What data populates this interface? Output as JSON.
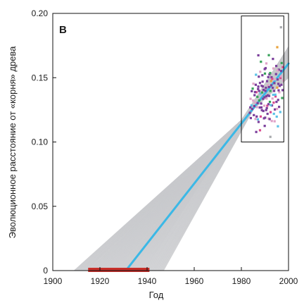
{
  "chart_data": {
    "type": "scatter",
    "panel_label": "B",
    "xlabel": "Год",
    "ylabel": "Эволюционное расстояние от «корня» древа",
    "xlim": [
      1900,
      2000
    ],
    "ylim": [
      0,
      0.2
    ],
    "x_ticks": [
      "1900",
      "1920",
      "1940",
      "1960",
      "1980",
      "2000"
    ],
    "y_ticks": [
      "0",
      "0.05",
      "0.10",
      "0.15",
      "0.20"
    ],
    "grid": false,
    "regression_line": {
      "color": "#3bb8e6",
      "x": [
        1931,
        2000
      ],
      "y": [
        0,
        0.161
      ]
    },
    "bootstrap_lines": {
      "color": "#c8c9cc",
      "pivot": {
        "x": 1980,
        "y": 0.117
      },
      "root_year_range": [
        1909,
        1947
      ],
      "end_value_range": [
        0.148,
        0.174
      ]
    },
    "root_interval": {
      "color": "#c8302a",
      "x": [
        1915,
        1941
      ],
      "y": 0
    },
    "inset_box": {
      "x": [
        1980,
        1998
      ],
      "y": [
        0.1,
        0.198
      ]
    },
    "points": [
      {
        "x": 1985.6,
        "y": 0.1364,
        "c": "#7b3f9b"
      },
      {
        "x": 1983.6,
        "y": 0.1227,
        "c": "#7b3f9b"
      },
      {
        "x": 1994.3,
        "y": 0.1487,
        "c": "#e0a3c8"
      },
      {
        "x": 1995.9,
        "y": 0.1562,
        "c": "#7b3f9b"
      },
      {
        "x": 1984.3,
        "y": 0.1284,
        "c": "#5bc2e7"
      },
      {
        "x": 1991.3,
        "y": 0.1441,
        "c": "#e0a3c8"
      },
      {
        "x": 1986.4,
        "y": 0.1387,
        "c": "#d94b8f"
      },
      {
        "x": 1992.8,
        "y": 0.1503,
        "c": "#7b3f9b"
      },
      {
        "x": 1988.7,
        "y": 0.1248,
        "c": "#7b3f9b"
      },
      {
        "x": 1997.1,
        "y": 0.1614,
        "c": "#3aa35b"
      },
      {
        "x": 1990.2,
        "y": 0.1398,
        "c": "#7b3f9b"
      },
      {
        "x": 1985.0,
        "y": 0.1322,
        "c": "#e0a3c8"
      },
      {
        "x": 1993.5,
        "y": 0.1367,
        "c": "#5bc2e7"
      },
      {
        "x": 1987.9,
        "y": 0.1459,
        "c": "#7b3f9b"
      },
      {
        "x": 1995.2,
        "y": 0.1423,
        "c": "#e8a33c"
      },
      {
        "x": 1989.6,
        "y": 0.1184,
        "c": "#7b3f9b"
      },
      {
        "x": 1984.8,
        "y": 0.1415,
        "c": "#3aa35b"
      },
      {
        "x": 1991.9,
        "y": 0.1526,
        "c": "#7b3f9b"
      },
      {
        "x": 1996.6,
        "y": 0.1498,
        "c": "#d94b8f"
      },
      {
        "x": 1986.9,
        "y": 0.1302,
        "c": "#7b3f9b"
      },
      {
        "x": 1990.7,
        "y": 0.1338,
        "c": "#e0a3c8"
      },
      {
        "x": 1993.0,
        "y": 0.1284,
        "c": "#7b3f9b"
      },
      {
        "x": 1988.1,
        "y": 0.1376,
        "c": "#5bc2e7"
      },
      {
        "x": 1994.8,
        "y": 0.1591,
        "c": "#7b3f9b"
      },
      {
        "x": 1985.3,
        "y": 0.1209,
        "c": "#7b3f9b"
      },
      {
        "x": 1992.3,
        "y": 0.1397,
        "c": "#3aa35b"
      },
      {
        "x": 1989.1,
        "y": 0.1432,
        "c": "#7b3f9b"
      },
      {
        "x": 1996.1,
        "y": 0.1387,
        "c": "#e0a3c8"
      },
      {
        "x": 1987.3,
        "y": 0.1156,
        "c": "#7b3f9b"
      },
      {
        "x": 1991.0,
        "y": 0.1282,
        "c": "#d94b8f"
      },
      {
        "x": 1994.0,
        "y": 0.1458,
        "c": "#7b3f9b"
      },
      {
        "x": 1983.9,
        "y": 0.1336,
        "c": "#e0a3c8"
      },
      {
        "x": 1990.0,
        "y": 0.1532,
        "c": "#3aa35b"
      },
      {
        "x": 1997.5,
        "y": 0.1403,
        "c": "#7b3f9b"
      },
      {
        "x": 1988.4,
        "y": 0.1299,
        "c": "#7b3f9b"
      },
      {
        "x": 1993.8,
        "y": 0.1219,
        "c": "#5bc2e7"
      },
      {
        "x": 1986.1,
        "y": 0.1445,
        "c": "#7b3f9b"
      },
      {
        "x": 1995.6,
        "y": 0.1327,
        "c": "#7b3f9b"
      },
      {
        "x": 1991.6,
        "y": 0.1182,
        "c": "#e0a3c8"
      },
      {
        "x": 1989.4,
        "y": 0.1405,
        "c": "#7b3f9b"
      },
      {
        "x": 1992.6,
        "y": 0.1474,
        "c": "#e8a33c"
      },
      {
        "x": 1984.6,
        "y": 0.1256,
        "c": "#7b3f9b"
      },
      {
        "x": 1996.9,
        "y": 0.1552,
        "c": "#7b3f9b"
      },
      {
        "x": 1987.6,
        "y": 0.1323,
        "c": "#3aa35b"
      },
      {
        "x": 1990.5,
        "y": 0.1248,
        "c": "#7b3f9b"
      },
      {
        "x": 1994.5,
        "y": 0.1354,
        "c": "#d94b8f"
      },
      {
        "x": 1988.9,
        "y": 0.1519,
        "c": "#7b3f9b"
      },
      {
        "x": 1986.6,
        "y": 0.1271,
        "c": "#e0a3c8"
      },
      {
        "x": 1993.3,
        "y": 0.1421,
        "c": "#7b3f9b"
      },
      {
        "x": 1995.0,
        "y": 0.1197,
        "c": "#5bc2e7"
      },
      {
        "x": 1991.2,
        "y": 0.1363,
        "c": "#7b3f9b"
      },
      {
        "x": 1985.8,
        "y": 0.1388,
        "c": "#7b3f9b"
      },
      {
        "x": 1997.8,
        "y": 0.1478,
        "c": "#e0a3c8"
      },
      {
        "x": 1989.9,
        "y": 0.1567,
        "c": "#7b3f9b"
      },
      {
        "x": 1992.1,
        "y": 0.1312,
        "c": "#3aa35b"
      },
      {
        "x": 1987.1,
        "y": 0.1412,
        "c": "#7b3f9b"
      },
      {
        "x": 1994.2,
        "y": 0.1253,
        "c": "#7b3f9b"
      },
      {
        "x": 1988.2,
        "y": 0.1198,
        "c": "#d94b8f"
      },
      {
        "x": 1996.3,
        "y": 0.1436,
        "c": "#7b3f9b"
      },
      {
        "x": 1990.9,
        "y": 0.1473,
        "c": "#7b3f9b"
      },
      {
        "x": 1993.6,
        "y": 0.1572,
        "c": "#e0a3c8"
      },
      {
        "x": 1984.0,
        "y": 0.1186,
        "c": "#7b3f9b"
      },
      {
        "x": 1991.5,
        "y": 0.1294,
        "c": "#7b3f9b"
      },
      {
        "x": 1986.2,
        "y": 0.1523,
        "c": "#5bc2e7"
      },
      {
        "x": 1995.4,
        "y": 0.1486,
        "c": "#7b3f9b"
      },
      {
        "x": 1989.2,
        "y": 0.1336,
        "c": "#7b3f9b"
      },
      {
        "x": 1992.9,
        "y": 0.1163,
        "c": "#e0a3c8"
      },
      {
        "x": 1987.8,
        "y": 0.1268,
        "c": "#7b3f9b"
      },
      {
        "x": 1997.3,
        "y": 0.1342,
        "c": "#3aa35b"
      },
      {
        "x": 1990.4,
        "y": 0.1421,
        "c": "#7b3f9b"
      },
      {
        "x": 1994.7,
        "y": 0.1528,
        "c": "#7b3f9b"
      },
      {
        "x": 1985.1,
        "y": 0.1453,
        "c": "#e0a3c8"
      },
      {
        "x": 1988.6,
        "y": 0.1437,
        "c": "#7b3f9b"
      },
      {
        "x": 1992.4,
        "y": 0.1232,
        "c": "#d94b8f"
      },
      {
        "x": 1996.0,
        "y": 0.1273,
        "c": "#7b3f9b"
      },
      {
        "x": 1991.8,
        "y": 0.1358,
        "c": "#7b3f9b"
      },
      {
        "x": 1987.0,
        "y": 0.1176,
        "c": "#5bc2e7"
      },
      {
        "x": 1993.9,
        "y": 0.1397,
        "c": "#7b3f9b"
      },
      {
        "x": 1989.7,
        "y": 0.1282,
        "c": "#e0a3c8"
      },
      {
        "x": 1995.7,
        "y": 0.1452,
        "c": "#7b3f9b"
      },
      {
        "x": 1986.8,
        "y": 0.1351,
        "c": "#3aa35b"
      },
      {
        "x": 1990.1,
        "y": 0.1189,
        "c": "#7b3f9b"
      },
      {
        "x": 1994.9,
        "y": 0.1312,
        "c": "#7b3f9b"
      },
      {
        "x": 1988.0,
        "y": 0.1546,
        "c": "#e0a3c8"
      },
      {
        "x": 1992.7,
        "y": 0.1441,
        "c": "#7b3f9b"
      },
      {
        "x": 1985.5,
        "y": 0.1279,
        "c": "#7b3f9b"
      },
      {
        "x": 1997.6,
        "y": 0.1582,
        "c": "#d94b8f"
      },
      {
        "x": 1991.1,
        "y": 0.1219,
        "c": "#7b3f9b"
      },
      {
        "x": 1993.2,
        "y": 0.1338,
        "c": "#e0a3c8"
      },
      {
        "x": 1989.0,
        "y": 0.1469,
        "c": "#7b3f9b"
      },
      {
        "x": 1987.5,
        "y": 0.1397,
        "c": "#7b3f9b"
      },
      {
        "x": 1996.5,
        "y": 0.1233,
        "c": "#5bc2e7"
      },
      {
        "x": 1990.6,
        "y": 0.1356,
        "c": "#7b3f9b"
      },
      {
        "x": 1984.4,
        "y": 0.1395,
        "c": "#7b3f9b"
      },
      {
        "x": 1994.1,
        "y": 0.1161,
        "c": "#e0a3c8"
      },
      {
        "x": 1992.2,
        "y": 0.1536,
        "c": "#3aa35b"
      },
      {
        "x": 1988.5,
        "y": 0.1269,
        "c": "#7b3f9b"
      },
      {
        "x": 1995.8,
        "y": 0.1402,
        "c": "#7b3f9b"
      },
      {
        "x": 1986.0,
        "y": 0.1179,
        "c": "#e0a3c8"
      },
      {
        "x": 1991.4,
        "y": 0.1505,
        "c": "#7b3f9b"
      },
      {
        "x": 1993.7,
        "y": 0.1306,
        "c": "#d94b8f"
      },
      {
        "x": 1989.3,
        "y": 0.1241,
        "c": "#7b3f9b"
      },
      {
        "x": 1997.0,
        "y": 0.1445,
        "c": "#7b3f9b"
      },
      {
        "x": 1985.9,
        "y": 0.1307,
        "c": "#e0a3c8"
      },
      {
        "x": 1990.3,
        "y": 0.1574,
        "c": "#7b3f9b"
      },
      {
        "x": 1994.4,
        "y": 0.1368,
        "c": "#5bc2e7"
      },
      {
        "x": 1987.2,
        "y": 0.1431,
        "c": "#7b3f9b"
      },
      {
        "x": 1992.0,
        "y": 0.1178,
        "c": "#7b3f9b"
      },
      {
        "x": 1995.1,
        "y": 0.1257,
        "c": "#e0a3c8"
      },
      {
        "x": 1988.8,
        "y": 0.1385,
        "c": "#3aa35b"
      },
      {
        "x": 1991.7,
        "y": 0.1427,
        "c": "#7b3f9b"
      },
      {
        "x": 1983.8,
        "y": 0.1269,
        "c": "#7b3f9b"
      },
      {
        "x": 1996.8,
        "y": 0.1511,
        "c": "#e0a3c8"
      },
      {
        "x": 1990.8,
        "y": 0.1263,
        "c": "#7b3f9b"
      },
      {
        "x": 1993.1,
        "y": 0.1491,
        "c": "#d94b8f"
      },
      {
        "x": 1986.5,
        "y": 0.1198,
        "c": "#7b3f9b"
      },
      {
        "x": 1989.8,
        "y": 0.1348,
        "c": "#7b3f9b"
      },
      {
        "x": 1995.3,
        "y": 0.1556,
        "c": "#e0a3c8"
      },
      {
        "x": 1987.4,
        "y": 0.1508,
        "c": "#7b3f9b"
      },
      {
        "x": 1992.5,
        "y": 0.1287,
        "c": "#5bc2e7"
      },
      {
        "x": 1991.65,
        "y": 0.1675,
        "c": "#3aa35b"
      },
      {
        "x": 1995.22,
        "y": 0.1737,
        "c": "#e8a33c"
      },
      {
        "x": 1996.8,
        "y": 0.1892,
        "c": "#a7a9ac"
      },
      {
        "x": 1987.2,
        "y": 0.1674,
        "c": "#7b3f9b"
      },
      {
        "x": 1992.3,
        "y": 0.104,
        "c": "#a7a9ac"
      },
      {
        "x": 1995.5,
        "y": 0.1122,
        "c": "#5bc2e7"
      },
      {
        "x": 1986.3,
        "y": 0.1078,
        "c": "#7b3f9b"
      },
      {
        "x": 1989.9,
        "y": 0.1125,
        "c": "#7b3f9b"
      },
      {
        "x": 1988.3,
        "y": 0.1624,
        "c": "#3aa35b"
      },
      {
        "x": 1993.4,
        "y": 0.1646,
        "c": "#7b3f9b"
      },
      {
        "x": 1990.6,
        "y": 0.1611,
        "c": "#e0a3c8"
      },
      {
        "x": 1987.9,
        "y": 0.1091,
        "c": "#d94b8f"
      }
    ]
  }
}
